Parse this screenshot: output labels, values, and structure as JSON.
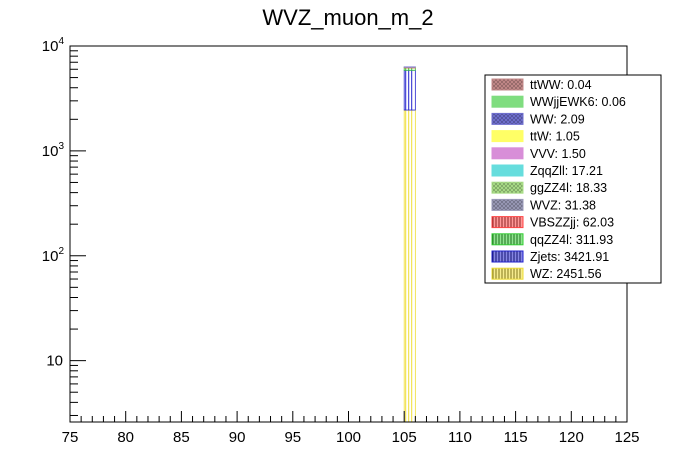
{
  "chart_data": {
    "type": "bar",
    "title": "WVZ_muon_m_2",
    "xlabel": "",
    "ylabel": "",
    "xlim": [
      75,
      125
    ],
    "ylim": [
      2.6,
      10000
    ],
    "y_log": true,
    "grid": false,
    "stacked": true,
    "bin": [
      105,
      106
    ],
    "legend_position": "top-right",
    "x_ticks": [
      "75",
      "80",
      "85",
      "90",
      "95",
      "100",
      "105",
      "110",
      "115",
      "120",
      "125"
    ],
    "y_ticks": [
      {
        "value": 10,
        "base": "10",
        "exp": ""
      },
      {
        "value": 100,
        "base": "10",
        "exp": "2"
      },
      {
        "value": 1000,
        "base": "10",
        "exp": "3"
      },
      {
        "value": 10000,
        "base": "10",
        "exp": "4"
      }
    ],
    "legend": [
      {
        "label": "ttWW: 0.04",
        "color": "#c48a8a",
        "pattern": "cross"
      },
      {
        "label": "WWjjEWK6: 0.06",
        "color": "#7fdd7f",
        "pattern": "solid"
      },
      {
        "label": "WW: 2.09",
        "color": "#6f6fcf",
        "pattern": "cross"
      },
      {
        "label": "ttW: 1.05",
        "color": "#ffff66",
        "pattern": "solid"
      },
      {
        "label": "VVV: 1.50",
        "color": "#d88ed8",
        "pattern": "solid"
      },
      {
        "label": "ZqqZll: 17.21",
        "color": "#66dddd",
        "pattern": "solid"
      },
      {
        "label": "ggZZ4l: 18.33",
        "color": "#aade88",
        "pattern": "cross"
      },
      {
        "label": "WVZ: 31.38",
        "color": "#9a9ab8",
        "pattern": "cross"
      },
      {
        "label": "VBSZZjj: 62.03",
        "color": "#ff4444",
        "pattern": "vline"
      },
      {
        "label": "qqZZ4l: 311.93",
        "color": "#33cc33",
        "pattern": "vline"
      },
      {
        "label": "Zjets: 3421.91",
        "color": "#2222cc",
        "pattern": "vline"
      },
      {
        "label": "WZ: 2451.56",
        "color": "#eedd33",
        "pattern": "vline"
      }
    ],
    "series": [
      {
        "name": "WZ: 2451.56",
        "value": 2451.56
      },
      {
        "name": "Zjets: 3421.91",
        "value": 3421.91
      },
      {
        "name": "qqZZ4l: 311.93",
        "value": 311.93
      },
      {
        "name": "VBSZZjj: 62.03",
        "value": 62.03
      },
      {
        "name": "WVZ: 31.38",
        "value": 31.38
      },
      {
        "name": "ggZZ4l: 18.33",
        "value": 18.33
      },
      {
        "name": "ZqqZll: 17.21",
        "value": 17.21
      },
      {
        "name": "VVV: 1.50",
        "value": 1.5
      },
      {
        "name": "ttW: 1.05",
        "value": 1.05
      },
      {
        "name": "WW: 2.09",
        "value": 2.09
      },
      {
        "name": "WWjjEWK6: 0.06",
        "value": 0.06
      },
      {
        "name": "ttWW: 0.04",
        "value": 0.04
      }
    ]
  }
}
